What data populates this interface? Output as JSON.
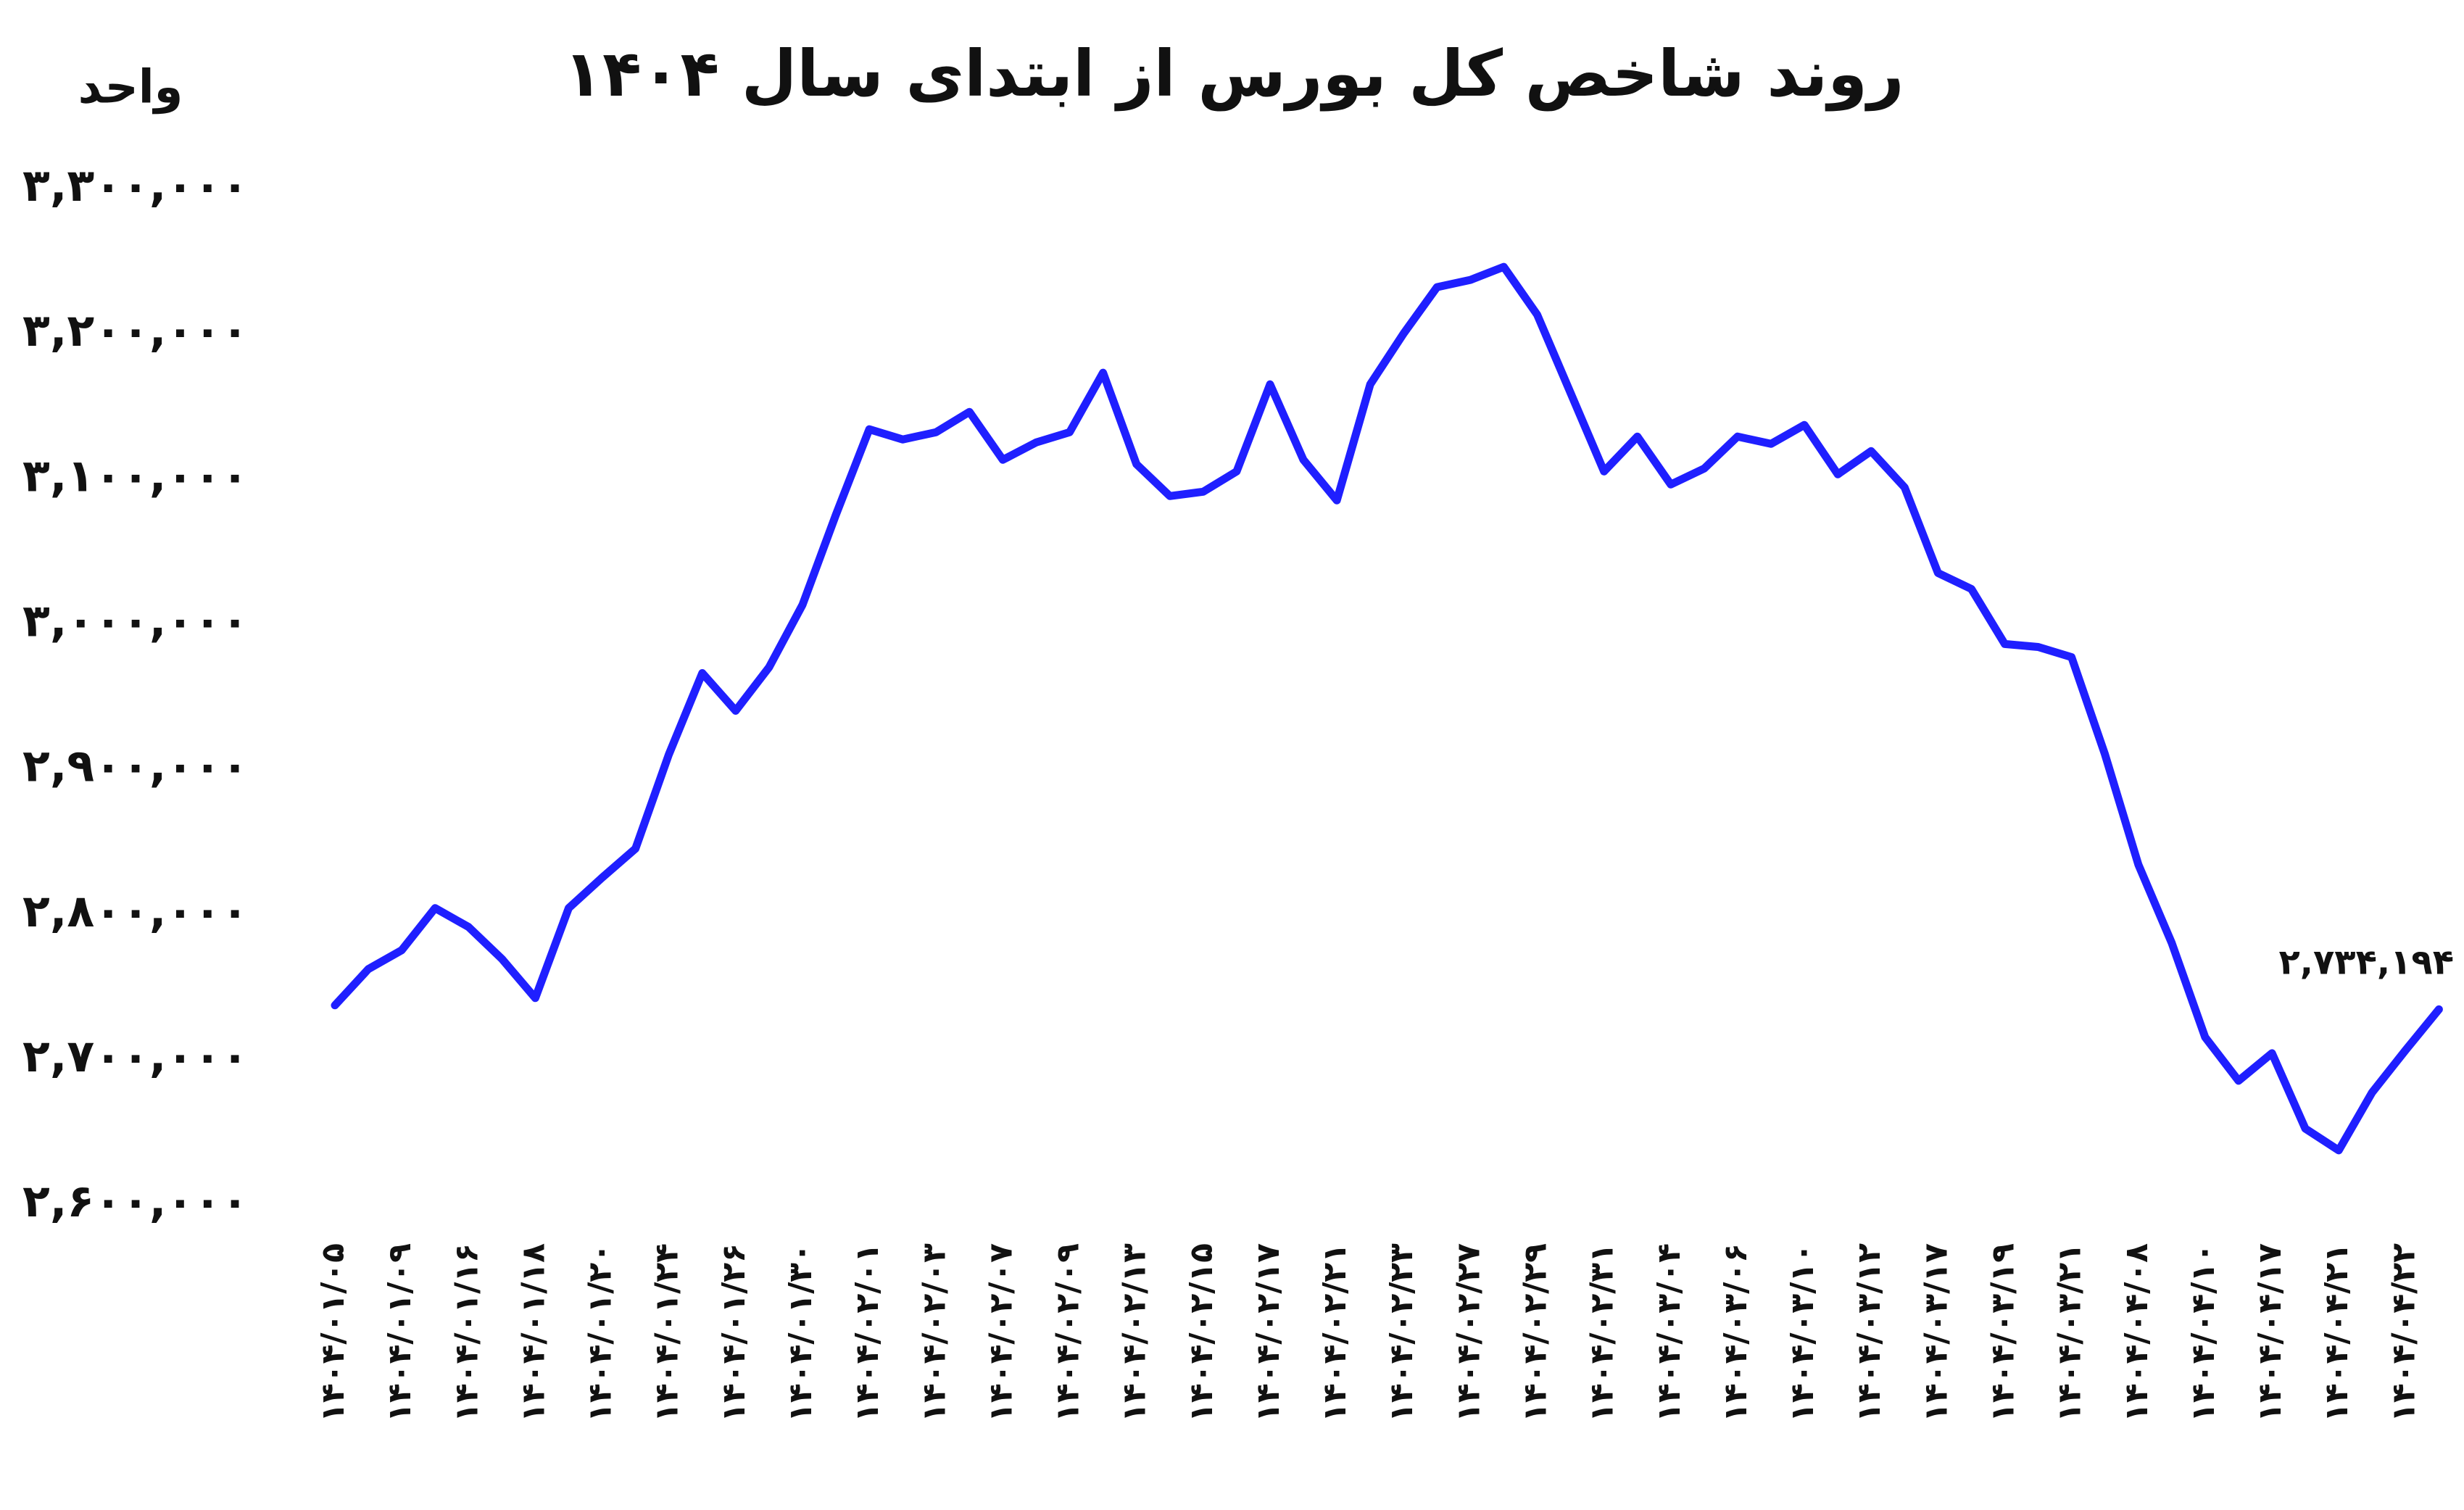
{
  "chart_data": {
    "type": "line",
    "title": "روند شاخص کل بورس از ابتدای سال ۱۴۰۴",
    "ylabel": "واحد",
    "color": "#1f1fff",
    "ylim": [
      2600000,
      3300000
    ],
    "yticks": [
      {
        "value": 2600000,
        "label": "۲,۶۰۰,۰۰۰"
      },
      {
        "value": 2700000,
        "label": "۲,۷۰۰,۰۰۰"
      },
      {
        "value": 2800000,
        "label": "۲,۸۰۰,۰۰۰"
      },
      {
        "value": 2900000,
        "label": "۲,۹۰۰,۰۰۰"
      },
      {
        "value": 3000000,
        "label": "۳,۰۰۰,۰۰۰"
      },
      {
        "value": 3100000,
        "label": "۳,۱۰۰,۰۰۰"
      },
      {
        "value": 3200000,
        "label": "۳,۲۰۰,۰۰۰"
      },
      {
        "value": 3300000,
        "label": "۳,۳۰۰,۰۰۰"
      }
    ],
    "categories": [
      "۱۴۰۴/۰۱/۰۵",
      null,
      "۱۴۰۴/۰۱/۰۹",
      null,
      "۱۴۰۴/۰۱/۱۶",
      null,
      "۱۴۰۴/۰۱/۱۸",
      null,
      "۱۴۰۴/۰۱/۲۰",
      null,
      "۱۴۰۴/۰۱/۲۴",
      null,
      "۱۴۰۴/۰۱/۲۶",
      null,
      "۱۴۰۴/۰۱/۳۰",
      null,
      "۱۴۰۴/۰۲/۰۱",
      null,
      "۱۴۰۴/۰۲/۰۳",
      null,
      "۱۴۰۴/۰۲/۰۷",
      null,
      "۱۴۰۴/۰۲/۰۹",
      null,
      "۱۴۰۴/۰۲/۱۳",
      null,
      "۱۴۰۴/۰۲/۱۵",
      null,
      "۱۴۰۴/۰۲/۱۷",
      null,
      "۱۴۰۴/۰۲/۲۱",
      null,
      "۱۴۰۴/۰۲/۲۳",
      null,
      "۱۴۰۴/۰۲/۲۷",
      null,
      "۱۴۰۴/۰۲/۲۹",
      null,
      "۱۴۰۴/۰۲/۳۱",
      null,
      "۱۴۰۴/۰۳/۰۴",
      null,
      "۱۴۰۴/۰۳/۰۶",
      null,
      "۱۴۰۴/۰۳/۱۰",
      null,
      "۱۴۰۴/۰۳/۱۲",
      null,
      "۱۴۰۴/۰۳/۱۷",
      null,
      "۱۴۰۴/۰۳/۱۹",
      null,
      "۱۴۰۴/۰۳/۲۱",
      null,
      "۱۴۰۴/۰۴/۰۸",
      null,
      "۱۴۰۴/۰۴/۱۰",
      null,
      "۱۴۰۴/۰۴/۱۷",
      null,
      "۱۴۰۴/۰۴/۲۱",
      null,
      "۱۴۰۴/۰۴/۲۲",
      null
    ],
    "values": [
      2737000,
      2762000,
      2775000,
      2804000,
      2791000,
      2769000,
      2742000,
      2804000,
      2825000,
      2845000,
      2910000,
      2966000,
      2940000,
      2970000,
      3013000,
      3075000,
      3134000,
      3127000,
      3132000,
      3146000,
      3113000,
      3125000,
      3132000,
      3173000,
      3110000,
      3088000,
      3091000,
      3105000,
      3165000,
      3113000,
      3085000,
      3165000,
      3200000,
      3232000,
      3237000,
      3246000,
      3213000,
      3159000,
      3105000,
      3129000,
      3096000,
      3107000,
      3129000,
      3124000,
      3137000,
      3103000,
      3119000,
      3094000,
      3035000,
      3024000,
      2986000,
      2984000,
      2977000,
      2910000,
      2834000,
      2780000,
      2715000,
      2685000,
      2704000,
      2652000,
      2637000,
      2677000,
      2706000,
      2734194
    ],
    "value_labels": [
      null,
      null,
      null,
      null,
      null,
      null,
      null,
      null,
      null,
      null,
      null,
      null,
      null,
      null,
      null,
      null,
      null,
      null,
      null,
      null,
      null,
      null,
      null,
      null,
      null,
      null,
      null,
      null,
      null,
      null,
      null,
      null,
      null,
      null,
      null,
      null,
      null,
      null,
      null,
      null,
      null,
      null,
      null,
      null,
      null,
      null,
      null,
      null,
      null,
      null,
      null,
      null,
      null,
      null,
      null,
      null,
      null,
      null,
      null,
      null,
      null,
      null,
      null,
      "۲,۷۳۴,۱۹۴"
    ]
  }
}
